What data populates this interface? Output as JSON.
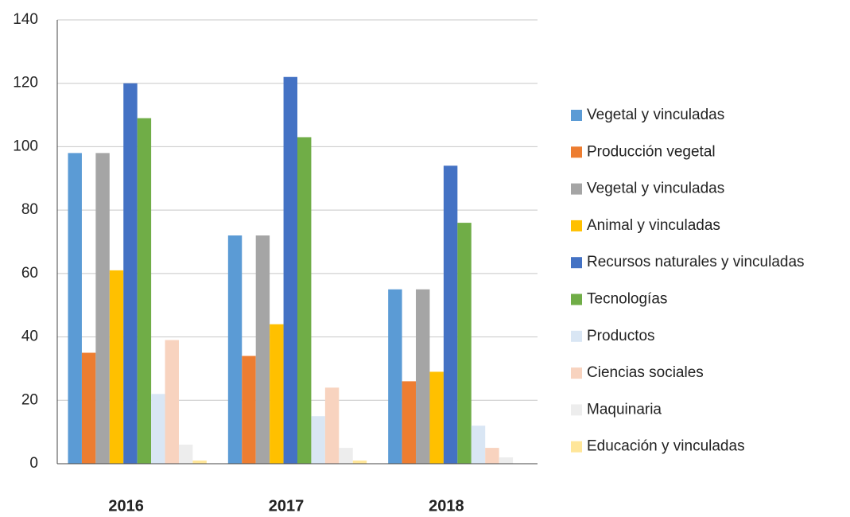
{
  "chart_data": {
    "type": "bar",
    "categories": [
      "2016",
      "2017",
      "2018"
    ],
    "series": [
      {
        "name": "Vegetal y vinculadas",
        "color": "#5b9bd5",
        "values": [
          98,
          72,
          55
        ]
      },
      {
        "name": "Producción vegetal",
        "color": "#ed7d31",
        "values": [
          35,
          34,
          26
        ]
      },
      {
        "name": "Vegetal y vinculadas",
        "color": "#a5a5a5",
        "values": [
          98,
          72,
          55
        ]
      },
      {
        "name": "Animal y vinculadas",
        "color": "#ffc000",
        "values": [
          61,
          44,
          29
        ]
      },
      {
        "name": "Recursos naturales y vinculadas",
        "color": "#4472c4",
        "values": [
          120,
          122,
          94
        ]
      },
      {
        "name": "Tecnologías",
        "color": "#70ad47",
        "values": [
          109,
          103,
          76
        ]
      },
      {
        "name": "Productos",
        "color": "#d9e6f4",
        "values": [
          22,
          15,
          12
        ]
      },
      {
        "name": "Ciencias sociales",
        "color": "#f8d3bf",
        "values": [
          39,
          24,
          5
        ]
      },
      {
        "name": "Maquinaria",
        "color": "#ededed",
        "values": [
          6,
          5,
          2
        ]
      },
      {
        "name": "Educación y vinculadas",
        "color": "#ffe699",
        "values": [
          1,
          1,
          0
        ]
      }
    ],
    "ylim": [
      0,
      140
    ],
    "yticks": [
      0,
      20,
      40,
      60,
      80,
      100,
      120,
      140
    ],
    "grid": true,
    "legend": "right"
  }
}
